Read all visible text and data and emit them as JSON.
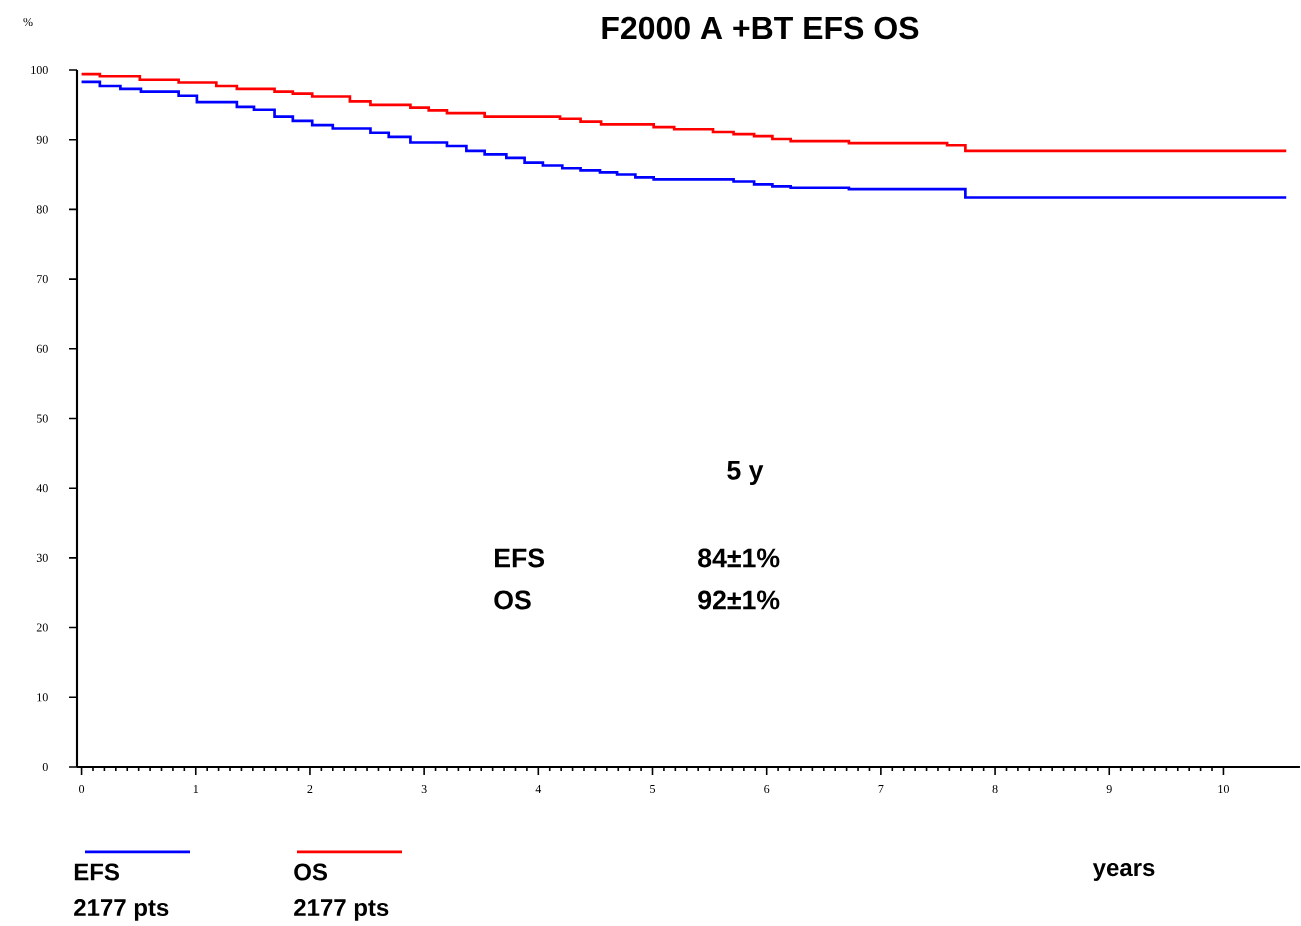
{
  "chart_data": {
    "type": "step",
    "title": "F2000 A +BT EFS OS",
    "ylabel": "%",
    "xlabel": "years",
    "xlim": [
      -0.04,
      10.67
    ],
    "ylim": [
      0,
      100
    ],
    "xticks": [
      0,
      1,
      2,
      3,
      4,
      5,
      6,
      7,
      8,
      9,
      10
    ],
    "yticks": [
      0,
      10,
      20,
      30,
      40,
      50,
      60,
      70,
      80,
      90,
      100
    ],
    "marker": "none",
    "legend": "bottom",
    "line_style": "solid",
    "annotations": [
      "5 y",
      "EFS",
      "84±1%",
      "OS",
      "92±1%",
      "2177 pts",
      "2177 pts"
    ],
    "series": [
      {
        "name": "EFS",
        "color": "#0000ff",
        "x": [
          0,
          0.16,
          0.34,
          0.52,
          0.85,
          1.01,
          1.36,
          1.51,
          1.69,
          1.85,
          2.02,
          2.2,
          2.53,
          2.69,
          2.88,
          3.2,
          3.37,
          3.53,
          3.72,
          3.88,
          4.04,
          4.21,
          4.37,
          4.54,
          4.69,
          4.85,
          5.01,
          5.71,
          5.89,
          6.05,
          6.21,
          6.72,
          7.74,
          10.55
        ],
        "values": [
          98.3,
          97.7,
          97.3,
          96.9,
          96.3,
          95.4,
          94.7,
          94.3,
          93.3,
          92.7,
          92.1,
          91.6,
          91.0,
          90.4,
          89.6,
          89.1,
          88.4,
          87.9,
          87.4,
          86.7,
          86.3,
          85.9,
          85.6,
          85.3,
          85.0,
          84.6,
          84.3,
          84.0,
          83.6,
          83.3,
          83.1,
          82.9,
          81.7,
          81.7
        ]
      },
      {
        "name": "OS",
        "color": "#ff0000",
        "x": [
          0,
          0.16,
          0.51,
          0.85,
          1.18,
          1.36,
          1.69,
          1.85,
          2.02,
          2.35,
          2.53,
          2.88,
          3.04,
          3.2,
          3.53,
          4.19,
          4.37,
          4.55,
          5.01,
          5.19,
          5.53,
          5.71,
          5.89,
          6.05,
          6.21,
          6.72,
          7.58,
          7.74,
          10.55
        ],
        "values": [
          99.4,
          99.1,
          98.6,
          98.2,
          97.7,
          97.3,
          96.9,
          96.6,
          96.2,
          95.5,
          95.0,
          94.6,
          94.2,
          93.8,
          93.3,
          93.0,
          92.6,
          92.2,
          91.8,
          91.5,
          91.1,
          90.8,
          90.5,
          90.1,
          89.8,
          89.5,
          89.2,
          88.4,
          88.4
        ]
      }
    ]
  }
}
